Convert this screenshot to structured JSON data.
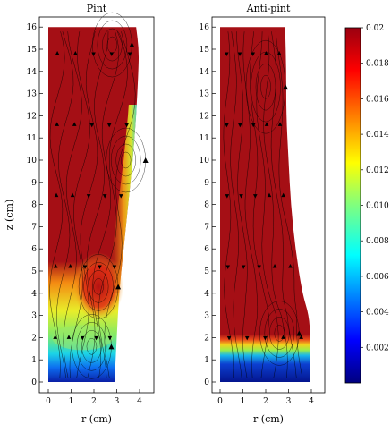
{
  "chart_data": {
    "type": "heatmap",
    "panels": [
      {
        "title": "Pint",
        "xlabel": "r (cm)",
        "ylabel": "z (cm)",
        "xlim": [
          0,
          4.5
        ],
        "ylim": [
          -0.2,
          16.3
        ],
        "x_ticks": [
          0,
          1,
          2,
          3,
          4
        ],
        "y_ticks": [
          0,
          1,
          2,
          3,
          4,
          5,
          6,
          7,
          8,
          9,
          10,
          11,
          12,
          13,
          14,
          15,
          16
        ],
        "wall_profile": [
          [
            0,
            2.9
          ],
          [
            2,
            3.0
          ],
          [
            4,
            3.1
          ],
          [
            6,
            3.3
          ],
          [
            8,
            3.5
          ],
          [
            10,
            3.7
          ],
          [
            12,
            3.85
          ],
          [
            14,
            3.95
          ],
          [
            15,
            3.97
          ],
          [
            16,
            3.85
          ]
        ],
        "concentration_field": "high (0.02) above z≈5.6 cm; recirculation cell r≈2.2, z≈4.3 with 0.017–0.019; gradient to 0.004–0.008 below z≈3; minimum ≈0.002 near z=0; low-concentration band along outer wall r>3.3, z 4–12",
        "vortex_centers": [
          [
            2.2,
            4.3
          ],
          [
            1.9,
            1.6
          ],
          [
            2.8,
            15.2
          ],
          [
            3.4,
            10.0
          ]
        ]
      },
      {
        "title": "Anti-pint",
        "xlabel": "r (cm)",
        "xlim": [
          0,
          4.5
        ],
        "ylim": [
          -0.2,
          16.3
        ],
        "x_ticks": [
          0,
          1,
          2,
          3,
          4
        ],
        "y_ticks": [
          0,
          1,
          2,
          3,
          4,
          5,
          6,
          7,
          8,
          9,
          10,
          11,
          12,
          13,
          14,
          15,
          16
        ],
        "wall_profile": [
          [
            0,
            3.95
          ],
          [
            2,
            3.95
          ],
          [
            3,
            3.9
          ],
          [
            4,
            3.6
          ],
          [
            6,
            3.3
          ],
          [
            8,
            3.1
          ],
          [
            10,
            3.0
          ],
          [
            12,
            2.9
          ],
          [
            14,
            2.9
          ],
          [
            16,
            2.85
          ]
        ],
        "concentration_field": "high (0.02) above z≈2 cm; sharp gradient z 1–2 cm; minimum ≈0.002 below z≈1 cm",
        "vortex_centers": [
          [
            2.0,
            13.3
          ],
          [
            2.6,
            2.2
          ]
        ]
      }
    ],
    "colorbar": {
      "min": 0,
      "max": 0.02,
      "ticks": [
        "0.002",
        "0.004",
        "0.006",
        "0.008",
        "0.010",
        "0.012",
        "0.014",
        "0.016",
        "0.018",
        "0.02"
      ],
      "colormap": "jet"
    },
    "colors": {
      "high": "#a50f15",
      "mid": "#f5f20a",
      "low": "#0a2aa8"
    }
  }
}
